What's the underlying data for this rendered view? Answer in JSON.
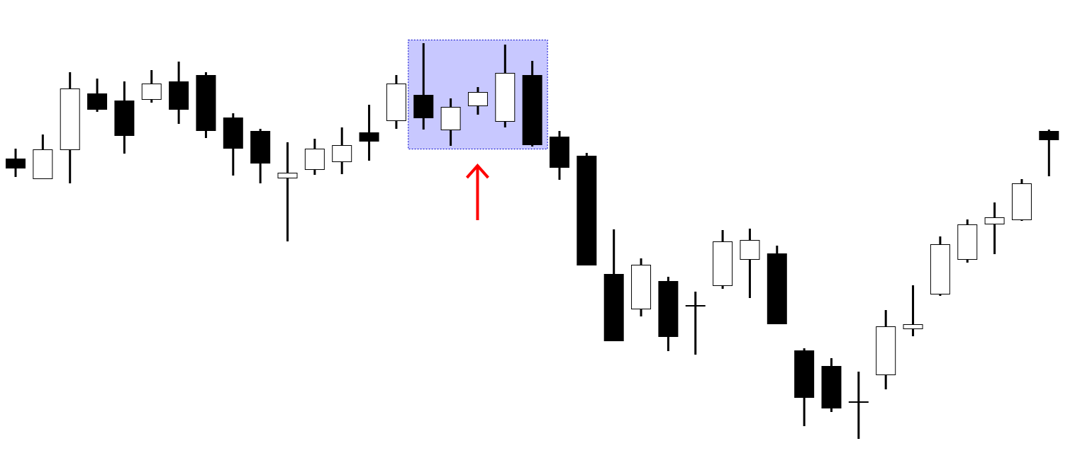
{
  "chart_data": {
    "type": "candlestick",
    "title": "",
    "xlabel": "",
    "ylabel": "",
    "axes_visible": false,
    "grid": false,
    "colors": {
      "bullish_body": "#ffffff",
      "bearish_body": "#000000",
      "outline": "#000000",
      "highlight_fill": "#c8c8ff",
      "highlight_border": "#0000cc",
      "arrow": "#ff0000"
    },
    "candles": [
      {
        "o": 42.6,
        "h": 44.0,
        "l": 40.0,
        "c": 41.3
      },
      {
        "o": 39.8,
        "h": 46.0,
        "l": 39.8,
        "c": 43.9
      },
      {
        "o": 43.9,
        "h": 54.8,
        "l": 39.1,
        "c": 52.5
      },
      {
        "o": 51.8,
        "h": 53.9,
        "l": 49.2,
        "c": 49.6
      },
      {
        "o": 50.8,
        "h": 53.5,
        "l": 43.3,
        "c": 45.9
      },
      {
        "o": 51.0,
        "h": 55.1,
        "l": 50.5,
        "c": 53.2
      },
      {
        "o": 53.5,
        "h": 56.3,
        "l": 47.5,
        "c": 49.6
      },
      {
        "o": 54.4,
        "h": 54.8,
        "l": 45.5,
        "c": 46.6
      },
      {
        "o": 48.4,
        "h": 49.0,
        "l": 40.2,
        "c": 44.1
      },
      {
        "o": 46.5,
        "h": 46.8,
        "l": 39.1,
        "c": 42.0
      },
      {
        "o": 39.9,
        "h": 44.9,
        "l": 30.9,
        "c": 40.6
      },
      {
        "o": 41.1,
        "h": 45.4,
        "l": 40.3,
        "c": 44.0
      },
      {
        "o": 42.2,
        "h": 47.0,
        "l": 40.4,
        "c": 44.5
      },
      {
        "o": 46.3,
        "h": 50.2,
        "l": 42.3,
        "c": 45.1
      },
      {
        "o": 48.0,
        "h": 54.4,
        "l": 46.8,
        "c": 53.2
      },
      {
        "o": 51.6,
        "h": 58.9,
        "l": 46.7,
        "c": 48.4
      },
      {
        "o": 46.7,
        "h": 51.1,
        "l": 44.4,
        "c": 49.9
      },
      {
        "o": 50.1,
        "h": 52.7,
        "l": 48.8,
        "c": 52.0
      },
      {
        "o": 47.9,
        "h": 58.7,
        "l": 47.0,
        "c": 54.7
      },
      {
        "o": 54.4,
        "h": 56.4,
        "l": 44.3,
        "c": 44.6
      },
      {
        "o": 45.7,
        "h": 46.5,
        "l": 39.6,
        "c": 41.4
      },
      {
        "o": 43.0,
        "h": 43.4,
        "l": 27.5,
        "c": 27.6
      },
      {
        "o": 26.3,
        "h": 32.6,
        "l": 16.8,
        "c": 16.9
      },
      {
        "o": 21.4,
        "h": 28.5,
        "l": 20.3,
        "c": 27.6
      },
      {
        "o": 25.3,
        "h": 25.9,
        "l": 15.4,
        "c": 17.5
      },
      {
        "o": 21.8,
        "h": 23.8,
        "l": 14.9,
        "c": 21.8
      },
      {
        "o": 24.7,
        "h": 32.5,
        "l": 24.2,
        "c": 30.9
      },
      {
        "o": 28.4,
        "h": 32.7,
        "l": 22.9,
        "c": 31.1
      },
      {
        "o": 29.2,
        "h": 30.3,
        "l": 19.3,
        "c": 19.3
      },
      {
        "o": 15.5,
        "h": 15.8,
        "l": 4.8,
        "c": 8.9
      },
      {
        "o": 13.3,
        "h": 14.4,
        "l": 6.8,
        "c": 7.4
      },
      {
        "o": 8.2,
        "h": 12.5,
        "l": 3.0,
        "c": 8.2
      },
      {
        "o": 12.1,
        "h": 21.2,
        "l": 10.0,
        "c": 18.9
      },
      {
        "o": 18.6,
        "h": 24.7,
        "l": 17.5,
        "c": 19.2
      },
      {
        "o": 23.5,
        "h": 31.6,
        "l": 23.2,
        "c": 30.5
      },
      {
        "o": 28.4,
        "h": 34.0,
        "l": 27.9,
        "c": 33.3
      },
      {
        "o": 33.4,
        "h": 36.4,
        "l": 29.1,
        "c": 34.3
      },
      {
        "o": 34.0,
        "h": 39.7,
        "l": 33.8,
        "c": 39.1
      },
      {
        "o": 46.5,
        "h": 46.7,
        "l": 40.1,
        "c": 45.3
      }
    ],
    "highlight": {
      "first_candle": 16,
      "last_candle": 20
    },
    "annotations": [
      {
        "type": "arrow",
        "direction": "up",
        "points_to": "highlight"
      }
    ]
  }
}
